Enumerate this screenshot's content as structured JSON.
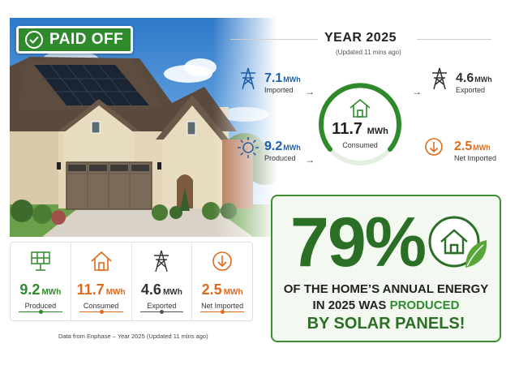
{
  "badge": {
    "label": "PAID OFF",
    "icon": "check-circle-icon"
  },
  "header": {
    "title": "YEAR 2025",
    "updated": "(Updated 11 mins ago)"
  },
  "flows": {
    "imported": {
      "value": "7.1",
      "unit": "MWh",
      "label": "Imported",
      "icon": "power-tower-icon",
      "color": "#1f5fa8"
    },
    "produced": {
      "value": "9.2",
      "unit": "MWh",
      "label": "Produced",
      "icon": "sun-icon",
      "color": "#1f5fa8"
    },
    "consumed": {
      "value": "11.7",
      "unit": "MWh",
      "label": "Consumed",
      "icon": "home-icon",
      "color": "#2f8a2b"
    },
    "exported": {
      "value": "4.6",
      "unit": "MWh",
      "label": "Exported",
      "icon": "power-tower-icon",
      "color": "#333333"
    },
    "net_imported": {
      "value": "2.5",
      "unit": "MWh",
      "label": "Net Imported",
      "icon": "down-arrow-circle-icon",
      "color": "#e06a1b"
    }
  },
  "stats": [
    {
      "value": "9.2",
      "unit": "MWh",
      "label": "Produced",
      "icon": "solar-panel-icon",
      "color": "#2f8a2b"
    },
    {
      "value": "11.7",
      "unit": "MWh",
      "label": "Consumed",
      "icon": "home-icon",
      "color": "#e06a1b"
    },
    {
      "value": "4.6",
      "unit": "MWh",
      "label": "Exported",
      "icon": "power-tower-icon",
      "color": "#333333"
    },
    {
      "value": "2.5",
      "unit": "MWh",
      "label": "Net Imported",
      "icon": "down-arrow-circle-icon",
      "color": "#e06a1b"
    }
  ],
  "source_note": "Data from Enphase – Year 2025 (Updated 11 mins ago)",
  "summary": {
    "percent": "79%",
    "percent_value": 79,
    "line1": "OF THE HOME’S ANNUAL ENERGY",
    "line2_prefix": "IN 2025 WAS ",
    "line2_highlight": "PRODUCED",
    "line3": "BY SOLAR PANELS!",
    "icon": "home-leaf-icon"
  },
  "colors": {
    "green": "#2f8a2b",
    "dark_green": "#2b6e25",
    "blue": "#1f5fa8",
    "orange": "#e06a1b"
  }
}
